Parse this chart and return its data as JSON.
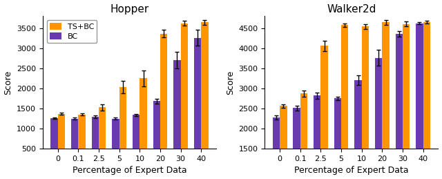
{
  "categories": [
    "0",
    "0.1",
    "2.5",
    "5",
    "10",
    "20",
    "30",
    "40"
  ],
  "hopper": {
    "title": "Hopper",
    "ts_bc_mean": [
      1370,
      1350,
      1530,
      2030,
      2250,
      3360,
      3620,
      3640
    ],
    "ts_bc_err": [
      30,
      25,
      80,
      160,
      200,
      90,
      60,
      60
    ],
    "bc_mean": [
      1260,
      1250,
      1290,
      1250,
      1340,
      1680,
      2700,
      3260
    ],
    "bc_err": [
      20,
      20,
      30,
      20,
      25,
      60,
      200,
      200
    ],
    "ylim": [
      500,
      3800
    ],
    "yticks": [
      500,
      1000,
      1500,
      2000,
      2500,
      3000,
      3500
    ],
    "ylabel": "Score"
  },
  "walker2d": {
    "title": "Walker2d",
    "ts_bc_mean": [
      2560,
      2870,
      4060,
      4570,
      4540,
      4640,
      4600,
      4650
    ],
    "ts_bc_err": [
      50,
      80,
      130,
      50,
      60,
      60,
      60,
      30
    ],
    "bc_mean": [
      2280,
      2510,
      2820,
      2750,
      3200,
      3760,
      4350,
      4620
    ],
    "bc_err": [
      50,
      60,
      80,
      50,
      120,
      200,
      70,
      30
    ],
    "ylim": [
      1500,
      4800
    ],
    "yticks": [
      1500,
      2000,
      2500,
      3000,
      3500,
      4000,
      4500
    ],
    "ylabel": "Score"
  },
  "xlabel": "Percentage of Expert Data",
  "ts_bc_color": "#FF9500",
  "bc_color": "#6A3BAF",
  "ts_bc_label": "TS+BC",
  "bc_label": "BC",
  "bar_width": 0.35,
  "background_color": "#ffffff",
  "figsize": [
    6.4,
    2.59
  ],
  "dpi": 100,
  "capsize": 2,
  "ecolor": "black",
  "elinewidth": 1.0
}
